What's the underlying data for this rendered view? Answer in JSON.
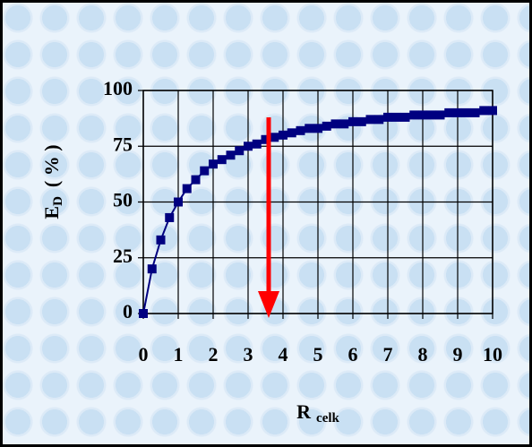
{
  "chart_data": {
    "type": "line",
    "xlabel": "R",
    "xlabel_sub": "celk",
    "ylabel": "E",
    "ylabel_sub": "D",
    "ylabel_unit": "( % )",
    "series": [
      {
        "color": "#000080",
        "x": [
          0,
          0.25,
          0.5,
          0.75,
          1,
          1.25,
          1.5,
          1.75,
          2,
          2.25,
          2.5,
          2.75,
          3,
          3.25,
          3.5,
          3.75,
          4,
          4.25,
          4.5,
          4.75,
          5,
          5.25,
          5.5,
          5.75,
          6,
          6.25,
          6.5,
          6.75,
          7,
          7.25,
          7.5,
          7.75,
          8,
          8.25,
          8.5,
          8.75,
          9,
          9.25,
          9.5,
          9.75,
          10
        ],
        "values": [
          0,
          20,
          33,
          43,
          50,
          56,
          60,
          64,
          67,
          69,
          71,
          73,
          75,
          76,
          78,
          79,
          80,
          81,
          82,
          83,
          83,
          84,
          85,
          85,
          86,
          86,
          87,
          87,
          88,
          88,
          88,
          89,
          89,
          89,
          89,
          90,
          90,
          90,
          90,
          91,
          91
        ]
      }
    ],
    "xlim": [
      0,
      10
    ],
    "xticks": [
      0,
      1,
      2,
      3,
      4,
      5,
      6,
      7,
      8,
      9,
      10
    ],
    "ylim": [
      0,
      100
    ],
    "yticks": [
      0,
      25,
      50,
      75,
      100
    ],
    "grid": true
  }
}
